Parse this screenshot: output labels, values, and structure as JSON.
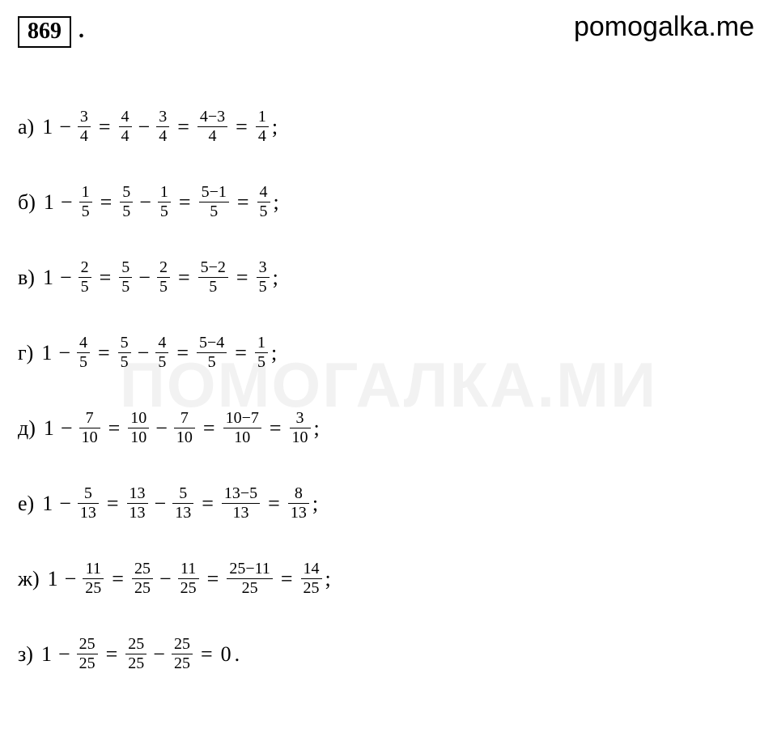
{
  "brand": "pomogalka.me",
  "watermark": "ПОМОГАЛКА.МИ",
  "problem_number": "869",
  "problem_number_after": ".",
  "lines": [
    {
      "label": "а)",
      "terms": [
        {
          "t": "w",
          "v": "1"
        },
        {
          "t": "op",
          "v": "−"
        },
        {
          "t": "f",
          "n": "3",
          "d": "4"
        },
        {
          "t": "eq",
          "v": "="
        },
        {
          "t": "f",
          "n": "4",
          "d": "4"
        },
        {
          "t": "op",
          "v": "−"
        },
        {
          "t": "f",
          "n": "3",
          "d": "4"
        },
        {
          "t": "eq",
          "v": "="
        },
        {
          "t": "f",
          "n": "4−3",
          "d": "4"
        },
        {
          "t": "eq",
          "v": "="
        },
        {
          "t": "f",
          "n": "1",
          "d": "4"
        }
      ],
      "end": ";"
    },
    {
      "label": "б)",
      "terms": [
        {
          "t": "w",
          "v": "1"
        },
        {
          "t": "op",
          "v": "−"
        },
        {
          "t": "f",
          "n": "1",
          "d": "5"
        },
        {
          "t": "eq",
          "v": "="
        },
        {
          "t": "f",
          "n": "5",
          "d": "5"
        },
        {
          "t": "op",
          "v": "−"
        },
        {
          "t": "f",
          "n": "1",
          "d": "5"
        },
        {
          "t": "eq",
          "v": "="
        },
        {
          "t": "f",
          "n": "5−1",
          "d": "5"
        },
        {
          "t": "eq",
          "v": "="
        },
        {
          "t": "f",
          "n": "4",
          "d": "5"
        }
      ],
      "end": ";"
    },
    {
      "label": "в)",
      "terms": [
        {
          "t": "w",
          "v": "1"
        },
        {
          "t": "op",
          "v": "−"
        },
        {
          "t": "f",
          "n": "2",
          "d": "5"
        },
        {
          "t": "eq",
          "v": "="
        },
        {
          "t": "f",
          "n": "5",
          "d": "5"
        },
        {
          "t": "op",
          "v": "−"
        },
        {
          "t": "f",
          "n": "2",
          "d": "5"
        },
        {
          "t": "eq",
          "v": "="
        },
        {
          "t": "f",
          "n": "5−2",
          "d": "5"
        },
        {
          "t": "eq",
          "v": "="
        },
        {
          "t": "f",
          "n": "3",
          "d": "5"
        }
      ],
      "end": ";"
    },
    {
      "label": "г)",
      "terms": [
        {
          "t": "w",
          "v": "1"
        },
        {
          "t": "op",
          "v": "−"
        },
        {
          "t": "f",
          "n": "4",
          "d": "5"
        },
        {
          "t": "eq",
          "v": "="
        },
        {
          "t": "f",
          "n": "5",
          "d": "5"
        },
        {
          "t": "op",
          "v": "−"
        },
        {
          "t": "f",
          "n": "4",
          "d": "5"
        },
        {
          "t": "eq",
          "v": "="
        },
        {
          "t": "f",
          "n": "5−4",
          "d": "5"
        },
        {
          "t": "eq",
          "v": "="
        },
        {
          "t": "f",
          "n": "1",
          "d": "5"
        }
      ],
      "end": ";"
    },
    {
      "label": "д)",
      "terms": [
        {
          "t": "w",
          "v": "1"
        },
        {
          "t": "op",
          "v": "−"
        },
        {
          "t": "f",
          "n": "7",
          "d": "10"
        },
        {
          "t": "eq",
          "v": "="
        },
        {
          "t": "f",
          "n": "10",
          "d": "10"
        },
        {
          "t": "op",
          "v": "−"
        },
        {
          "t": "f",
          "n": "7",
          "d": "10"
        },
        {
          "t": "eq",
          "v": "="
        },
        {
          "t": "f",
          "n": "10−7",
          "d": "10"
        },
        {
          "t": "eq",
          "v": "="
        },
        {
          "t": "f",
          "n": "3",
          "d": "10"
        }
      ],
      "end": ";"
    },
    {
      "label": "е)",
      "terms": [
        {
          "t": "w",
          "v": "1"
        },
        {
          "t": "op",
          "v": "−"
        },
        {
          "t": "f",
          "n": "5",
          "d": "13"
        },
        {
          "t": "eq",
          "v": "="
        },
        {
          "t": "f",
          "n": "13",
          "d": "13"
        },
        {
          "t": "op",
          "v": "−"
        },
        {
          "t": "f",
          "n": "5",
          "d": "13"
        },
        {
          "t": "eq",
          "v": "="
        },
        {
          "t": "f",
          "n": "13−5",
          "d": "13"
        },
        {
          "t": "eq",
          "v": "="
        },
        {
          "t": "f",
          "n": "8",
          "d": "13"
        }
      ],
      "end": ";"
    },
    {
      "label": "ж)",
      "terms": [
        {
          "t": "w",
          "v": "1"
        },
        {
          "t": "op",
          "v": "−"
        },
        {
          "t": "f",
          "n": "11",
          "d": "25"
        },
        {
          "t": "eq",
          "v": "="
        },
        {
          "t": "f",
          "n": "25",
          "d": "25"
        },
        {
          "t": "op",
          "v": "−"
        },
        {
          "t": "f",
          "n": "11",
          "d": "25"
        },
        {
          "t": "eq",
          "v": "="
        },
        {
          "t": "f",
          "n": "25−11",
          "d": "25"
        },
        {
          "t": "eq",
          "v": "="
        },
        {
          "t": "f",
          "n": "14",
          "d": "25"
        }
      ],
      "end": ";"
    },
    {
      "label": "з)",
      "terms": [
        {
          "t": "w",
          "v": "1"
        },
        {
          "t": "op",
          "v": "−"
        },
        {
          "t": "f",
          "n": "25",
          "d": "25"
        },
        {
          "t": "eq",
          "v": "="
        },
        {
          "t": "f",
          "n": "25",
          "d": "25"
        },
        {
          "t": "op",
          "v": "−"
        },
        {
          "t": "f",
          "n": "25",
          "d": "25"
        },
        {
          "t": "eq",
          "v": "="
        },
        {
          "t": "w",
          "v": "0"
        }
      ],
      "end": "."
    }
  ]
}
